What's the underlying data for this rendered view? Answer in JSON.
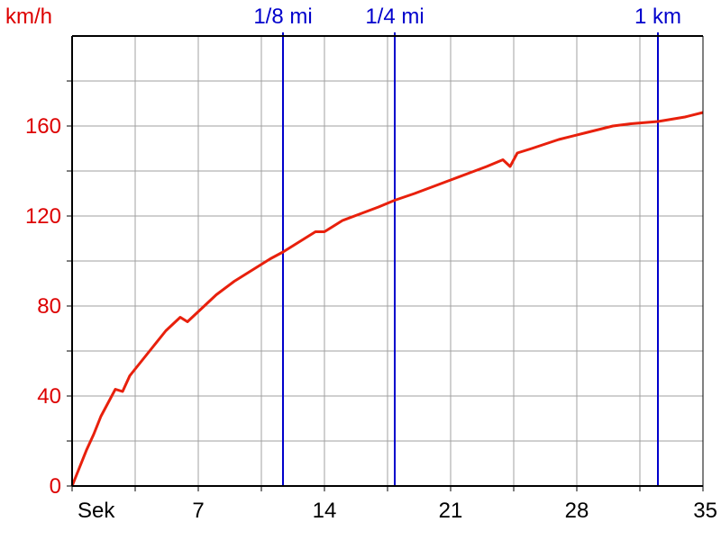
{
  "chart_data": {
    "type": "line",
    "ylabel": "km/h",
    "xlabel": "Sek",
    "xlim": [
      0,
      35
    ],
    "ylim": [
      0,
      200
    ],
    "grid": true,
    "x_ticks": [
      7,
      14,
      21,
      28,
      35
    ],
    "y_ticks": [
      0,
      40,
      80,
      120,
      160
    ],
    "series": [
      {
        "color": "#e8200c",
        "x": [
          0,
          0.4,
          0.8,
          1.2,
          1.6,
          2.0,
          2.4,
          2.8,
          3.2,
          3.8,
          4.4,
          5.2,
          6.0,
          6.4,
          6.8,
          7.2,
          8.0,
          9.0,
          10.0,
          11.0,
          11.7,
          12.5,
          13.5,
          14.0,
          15.0,
          16.0,
          17.0,
          17.9,
          19.0,
          20.0,
          21.0,
          22.0,
          23.0,
          23.9,
          24.3,
          24.7,
          25.5,
          27.0,
          28.5,
          30.0,
          31.0,
          32.5,
          34.0,
          35.0
        ],
        "values": [
          0,
          8,
          16,
          23,
          31,
          37,
          43,
          42,
          49,
          55,
          61,
          69,
          75,
          73,
          76,
          79,
          85,
          91,
          96,
          101,
          104,
          108,
          113,
          113,
          118,
          121,
          124,
          127,
          130,
          133,
          136,
          139,
          142,
          145,
          142,
          148,
          150,
          154,
          157,
          160,
          161,
          162,
          164,
          166
        ]
      }
    ]
  },
  "markers": [
    {
      "label": "1/8 mi",
      "x": 11.7,
      "color": "#0000cc"
    },
    {
      "label": "1/4 mi",
      "x": 17.9,
      "color": "#0000cc"
    },
    {
      "label": "1 km",
      "x": 32.5,
      "color": "#0000cc"
    }
  ]
}
